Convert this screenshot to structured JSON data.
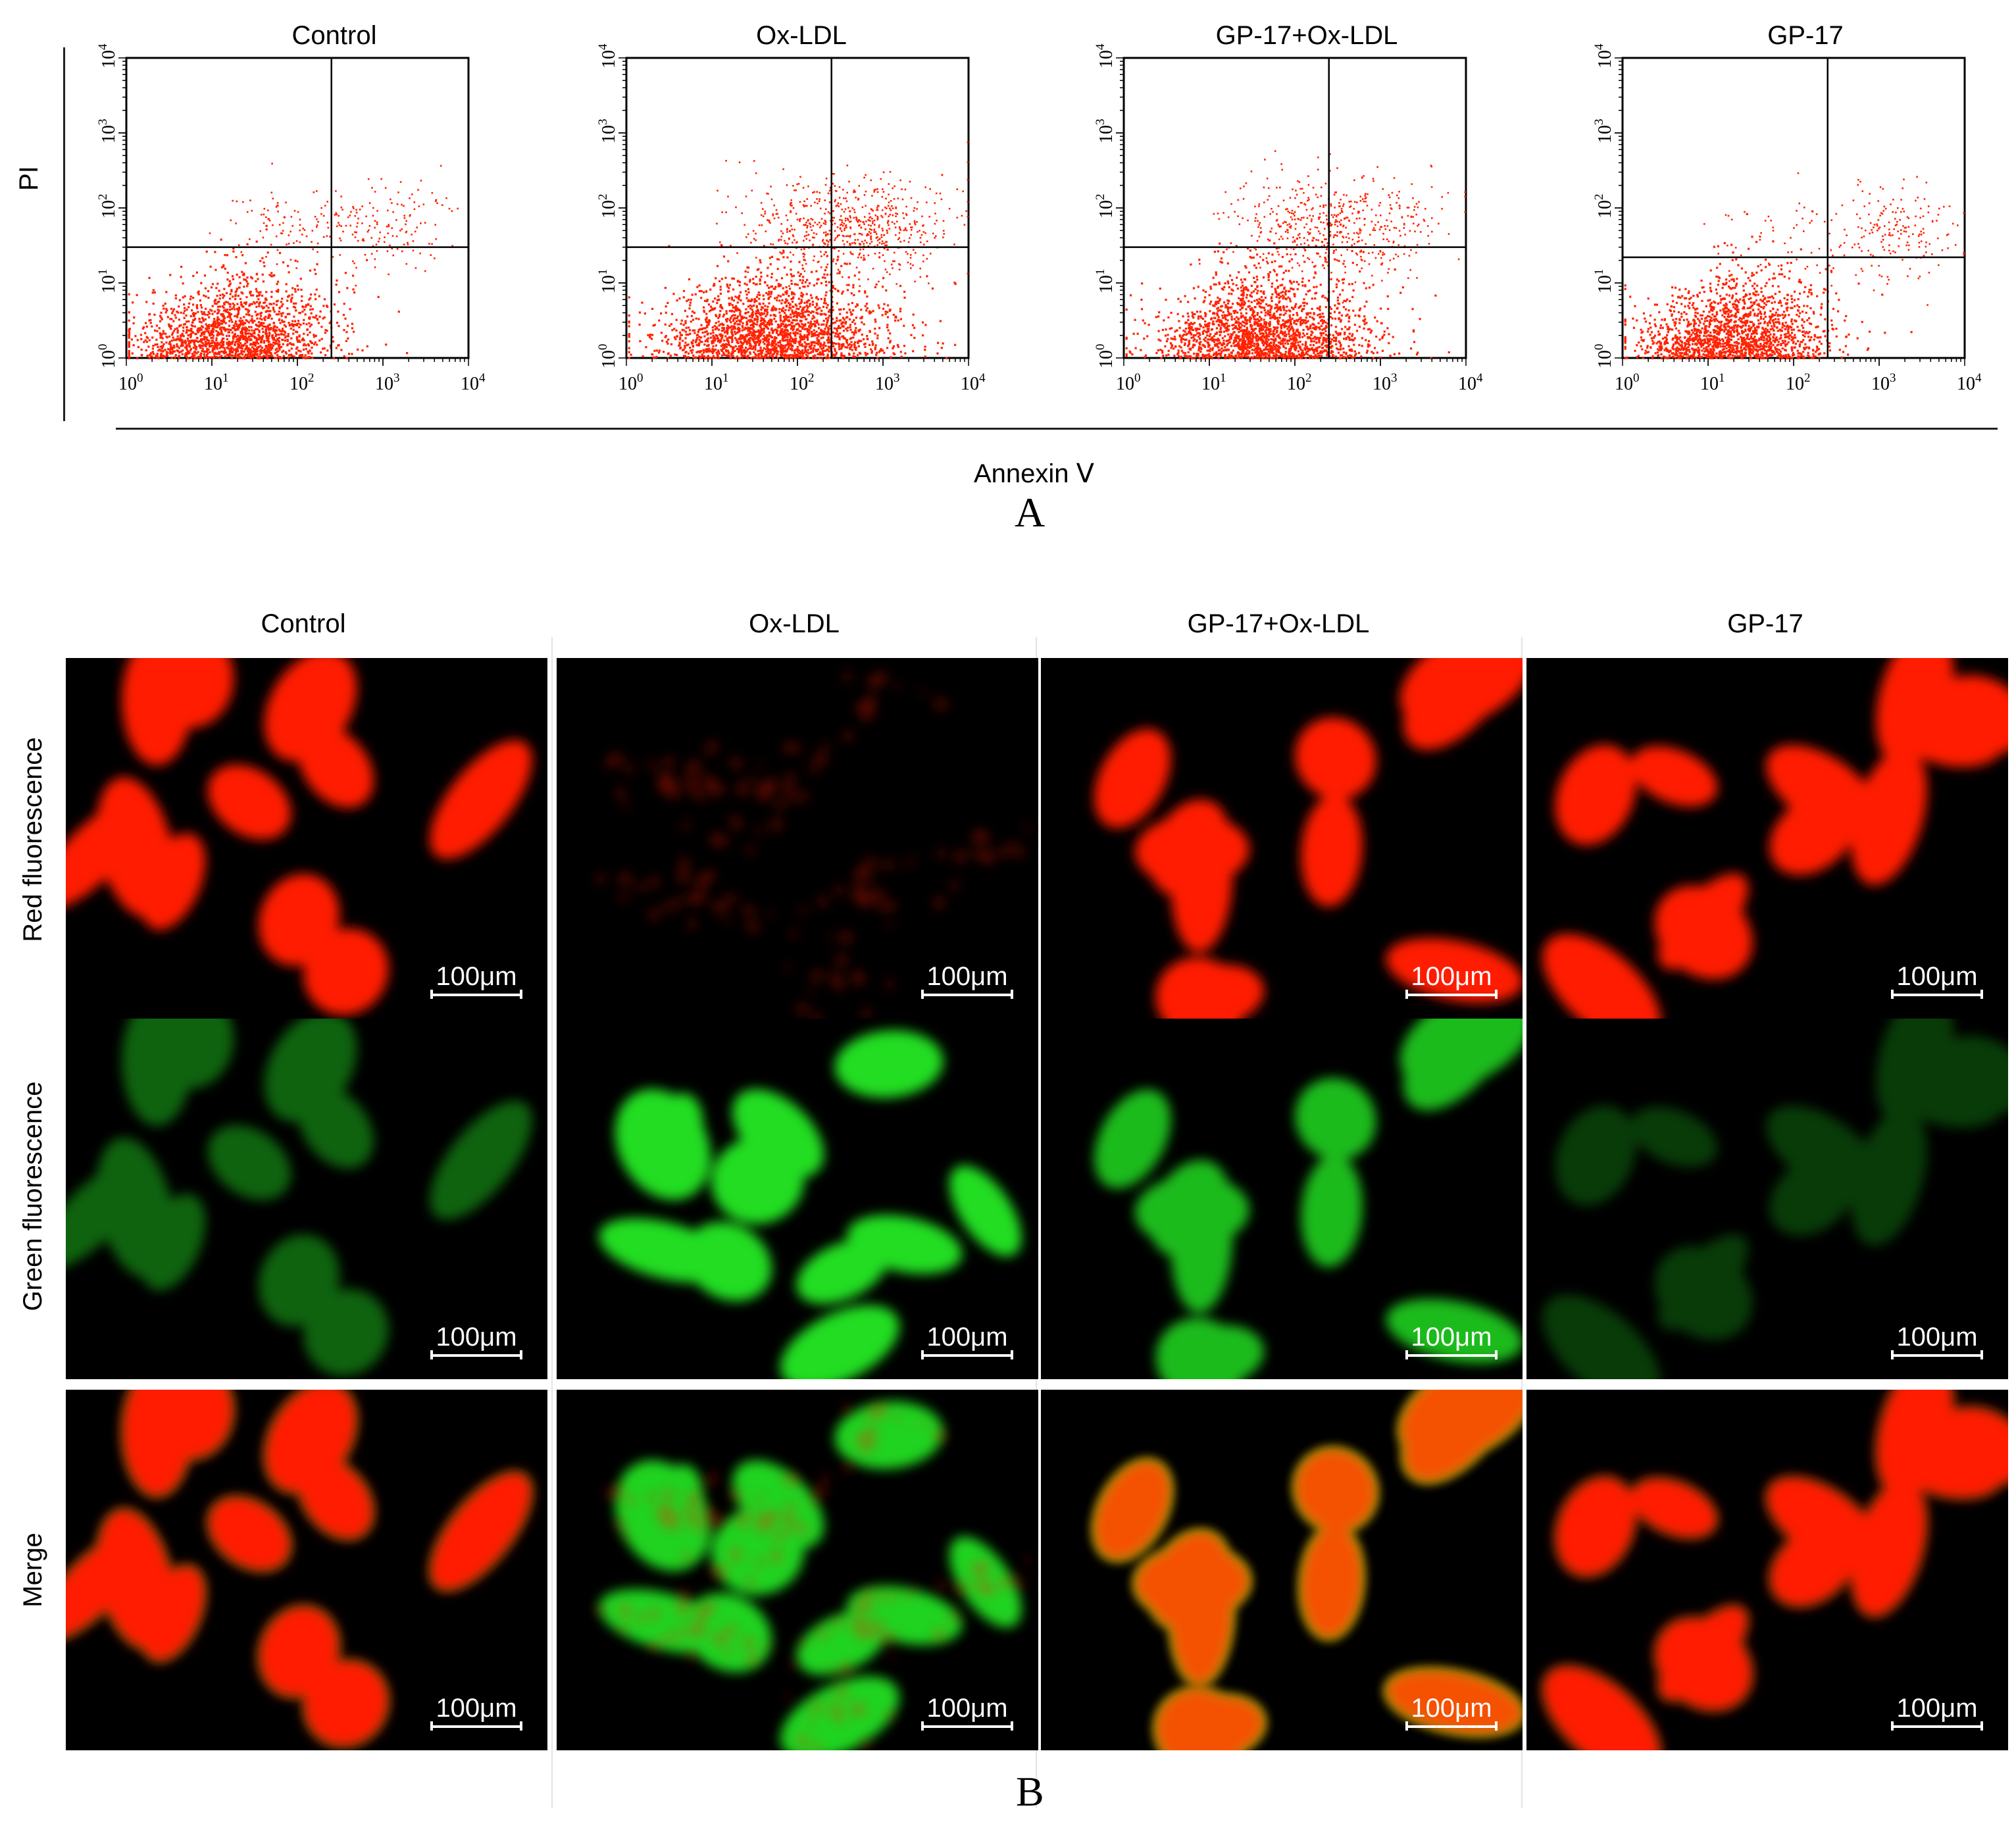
{
  "panel_a": {
    "y_axis_label": "PI",
    "x_axis_label": "Annexin Ⅴ",
    "letter": "A",
    "tick_labels": [
      "10",
      "10",
      "10",
      "10",
      "10"
    ],
    "tick_exponents": [
      "0",
      "1",
      "2",
      "3",
      "4"
    ],
    "dot_color": "#ff2200"
  },
  "chart_data": [
    {
      "type": "scatter",
      "title": "Control",
      "xlabel": "Annexin Ⅴ",
      "ylabel": "PI",
      "x_scale": "log",
      "y_scale": "log",
      "xlim": [
        1,
        10000
      ],
      "ylim": [
        1,
        10000
      ],
      "quadrant_gate": {
        "x": 250,
        "y": 30
      },
      "x_ticks": [
        1,
        10,
        100,
        1000,
        10000
      ],
      "y_ticks": [
        1,
        10,
        100,
        1000,
        10000
      ],
      "clusters": [
        {
          "center": [
            18,
            2
          ],
          "spread": [
            0.35,
            0.2
          ],
          "n": 1700
        },
        {
          "center": [
            1100,
            60
          ],
          "spread": [
            0.25,
            0.18
          ],
          "n": 140
        },
        {
          "center": [
            90,
            60
          ],
          "spread": [
            0.3,
            0.18
          ],
          "n": 90
        }
      ]
    },
    {
      "type": "scatter",
      "title": "Ox-LDL",
      "xlabel": "Annexin Ⅴ",
      "ylabel": "PI",
      "x_scale": "log",
      "y_scale": "log",
      "xlim": [
        1,
        10000
      ],
      "ylim": [
        1,
        10000
      ],
      "quadrant_gate": {
        "x": 250,
        "y": 30
      },
      "x_ticks": [
        1,
        10,
        100,
        1000,
        10000
      ],
      "y_ticks": [
        1,
        10,
        100,
        1000,
        10000
      ],
      "clusters": [
        {
          "center": [
            55,
            3
          ],
          "spread": [
            0.4,
            0.25
          ],
          "n": 2100
        },
        {
          "center": [
            700,
            60
          ],
          "spread": [
            0.3,
            0.2
          ],
          "n": 380
        },
        {
          "center": [
            150,
            60
          ],
          "spread": [
            0.3,
            0.2
          ],
          "n": 260
        }
      ]
    },
    {
      "type": "scatter",
      "title": "GP-17+Ox-LDL",
      "xlabel": "Annexin Ⅴ",
      "ylabel": "PI",
      "x_scale": "log",
      "y_scale": "log",
      "xlim": [
        1,
        10000
      ],
      "ylim": [
        1,
        10000
      ],
      "quadrant_gate": {
        "x": 250,
        "y": 30
      },
      "x_ticks": [
        1,
        10,
        100,
        1000,
        10000
      ],
      "y_ticks": [
        1,
        10,
        100,
        1000,
        10000
      ],
      "clusters": [
        {
          "center": [
            45,
            3
          ],
          "spread": [
            0.38,
            0.24
          ],
          "n": 2000
        },
        {
          "center": [
            600,
            60
          ],
          "spread": [
            0.3,
            0.2
          ],
          "n": 280
        },
        {
          "center": [
            120,
            60
          ],
          "spread": [
            0.3,
            0.2
          ],
          "n": 220
        }
      ]
    },
    {
      "type": "scatter",
      "title": "GP-17",
      "xlabel": "Annexin Ⅴ",
      "ylabel": "PI",
      "x_scale": "log",
      "y_scale": "log",
      "xlim": [
        1,
        10000
      ],
      "ylim": [
        1,
        10000
      ],
      "quadrant_gate": {
        "x": 250,
        "y": 22
      },
      "x_ticks": [
        1,
        10,
        100,
        1000,
        10000
      ],
      "y_ticks": [
        1,
        10,
        100,
        1000,
        10000
      ],
      "clusters": [
        {
          "center": [
            20,
            2
          ],
          "spread": [
            0.35,
            0.2
          ],
          "n": 1700
        },
        {
          "center": [
            1600,
            50
          ],
          "spread": [
            0.22,
            0.2
          ],
          "n": 170
        },
        {
          "center": [
            100,
            45
          ],
          "spread": [
            0.3,
            0.2
          ],
          "n": 60
        }
      ]
    }
  ],
  "panel_b": {
    "letter": "B",
    "columns": [
      "Control",
      "Ox-LDL",
      "GP-17+Ox-LDL",
      "GP-17"
    ],
    "rows": [
      "Red fluorescence",
      "Green fluorescence",
      "Merge"
    ],
    "scale_bar": "100μm",
    "colors": {
      "red": "#ff1a00",
      "green": "#22dd22",
      "merge_yellow": "#ffcc00",
      "background": "#000000"
    },
    "channel_intensity": {
      "red": [
        1.0,
        0.25,
        0.9,
        1.0
      ],
      "green": [
        0.3,
        0.9,
        0.7,
        0.12
      ]
    }
  }
}
